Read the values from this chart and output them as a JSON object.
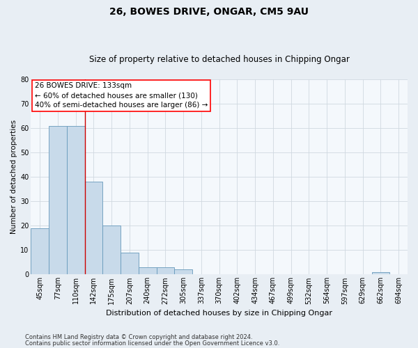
{
  "title1": "26, BOWES DRIVE, ONGAR, CM5 9AU",
  "title2": "Size of property relative to detached houses in Chipping Ongar",
  "xlabel": "Distribution of detached houses by size in Chipping Ongar",
  "ylabel": "Number of detached properties",
  "categories": [
    "45sqm",
    "77sqm",
    "110sqm",
    "142sqm",
    "175sqm",
    "207sqm",
    "240sqm",
    "272sqm",
    "305sqm",
    "337sqm",
    "370sqm",
    "402sqm",
    "434sqm",
    "467sqm",
    "499sqm",
    "532sqm",
    "564sqm",
    "597sqm",
    "629sqm",
    "662sqm",
    "694sqm"
  ],
  "values": [
    19,
    61,
    61,
    38,
    20,
    9,
    3,
    3,
    2,
    0,
    0,
    0,
    0,
    0,
    0,
    0,
    0,
    0,
    0,
    1,
    0
  ],
  "bar_color": "#c8daea",
  "bar_edge_color": "#6699bb",
  "vline_color": "#cc0000",
  "vline_x": 2.5,
  "annotation_text_line1": "26 BOWES DRIVE: 133sqm",
  "annotation_text_line2": "← 60% of detached houses are smaller (130)",
  "annotation_text_line3": "40% of semi-detached houses are larger (86) →",
  "annotation_box_facecolor": "white",
  "annotation_box_edgecolor": "red",
  "ylim": [
    0,
    80
  ],
  "yticks": [
    0,
    10,
    20,
    30,
    40,
    50,
    60,
    70,
    80
  ],
  "grid_color": "#d0d8e0",
  "footer1": "Contains HM Land Registry data © Crown copyright and database right 2024.",
  "footer2": "Contains public sector information licensed under the Open Government Licence v3.0.",
  "bg_color": "#e8eef4",
  "plot_bg_color": "#f4f8fc",
  "title1_fontsize": 10,
  "title2_fontsize": 8.5,
  "xlabel_fontsize": 8,
  "ylabel_fontsize": 7.5,
  "tick_fontsize": 7,
  "annotation_fontsize": 7.5,
  "footer_fontsize": 6
}
